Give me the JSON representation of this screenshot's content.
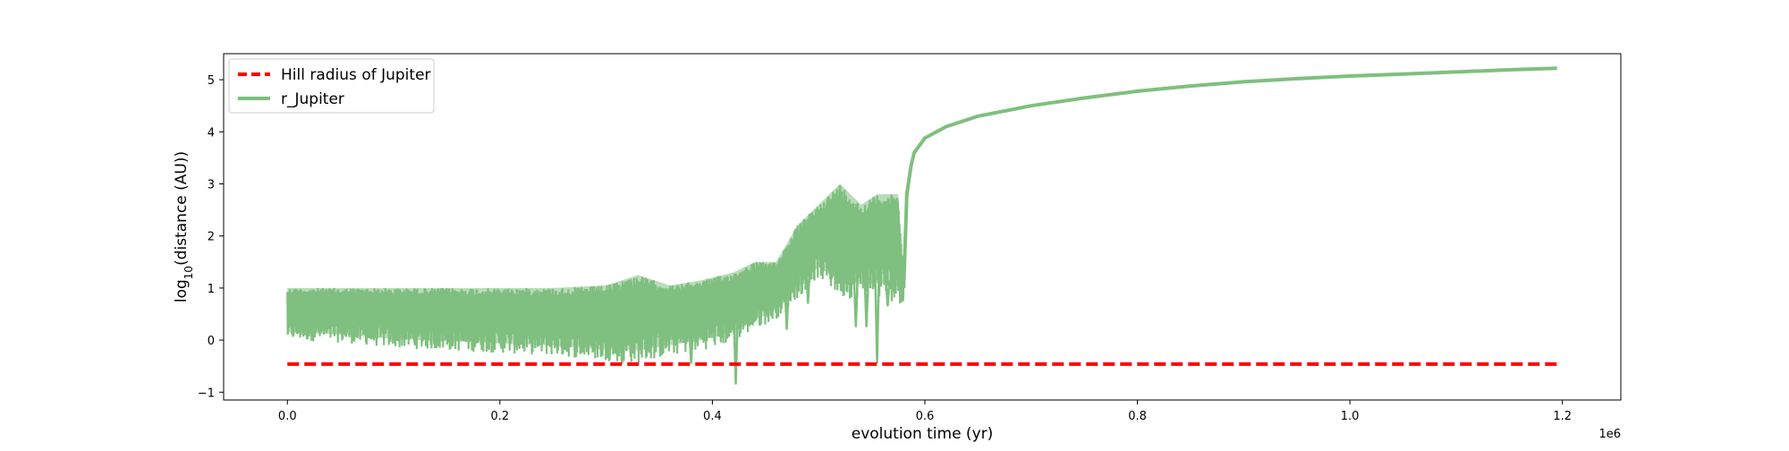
{
  "chart_data": {
    "type": "line",
    "xlabel": "evolution time (yr)",
    "ylabel_main": "log",
    "ylabel_sub": "10",
    "ylabel_rest": "(distance (AU))",
    "x_offset_label": "1e6",
    "xlim": [
      -0.06,
      1.255
    ],
    "ylim": [
      -1.15,
      5.5
    ],
    "x_ticks": [
      0.0,
      0.2,
      0.4,
      0.6,
      0.8,
      1.0,
      1.2
    ],
    "x_tick_labels": [
      "0.0",
      "0.2",
      "0.4",
      "0.6",
      "0.8",
      "1.0",
      "1.2"
    ],
    "y_ticks": [
      -1,
      0,
      1,
      2,
      3,
      4,
      5
    ],
    "y_tick_labels": [
      "−1",
      "0",
      "1",
      "2",
      "3",
      "4",
      "5"
    ],
    "grid": false,
    "legend_position": "upper-left",
    "series": [
      {
        "name": "Hill radius of Jupiter",
        "style": "dashed",
        "color": "#ff0000",
        "x": [
          0.0,
          1.195
        ],
        "y": [
          -0.46,
          -0.46
        ]
      },
      {
        "name": "r_Jupiter",
        "style": "solid",
        "color": "#7fbf7f",
        "envelope": {
          "x": [
            0.0,
            0.05,
            0.1,
            0.15,
            0.2,
            0.25,
            0.3,
            0.33,
            0.36,
            0.39,
            0.42,
            0.44,
            0.46,
            0.48,
            0.5,
            0.52,
            0.54,
            0.555,
            0.575,
            0.58
          ],
          "upper": [
            1.0,
            1.0,
            1.0,
            1.0,
            1.0,
            1.0,
            1.05,
            1.25,
            1.05,
            1.15,
            1.3,
            1.5,
            1.5,
            2.2,
            2.6,
            3.0,
            2.6,
            2.8,
            2.8,
            1.2
          ],
          "lower": [
            0.0,
            -0.05,
            -0.15,
            -0.2,
            -0.25,
            -0.3,
            -0.4,
            -0.45,
            -0.3,
            -0.2,
            -0.05,
            0.2,
            0.4,
            0.8,
            1.2,
            0.8,
            0.8,
            0.8,
            0.7,
            0.7
          ]
        },
        "curve": {
          "x": [
            0.58,
            0.583,
            0.587,
            0.59,
            0.6,
            0.62,
            0.65,
            0.7,
            0.75,
            0.8,
            0.85,
            0.9,
            0.95,
            1.0,
            1.05,
            1.1,
            1.15,
            1.195
          ],
          "y": [
            1.0,
            2.8,
            3.35,
            3.6,
            3.88,
            4.1,
            4.3,
            4.5,
            4.65,
            4.78,
            4.88,
            4.96,
            5.02,
            5.07,
            5.11,
            5.15,
            5.19,
            5.22
          ]
        },
        "dips": [
          {
            "x": 0.315,
            "y": -0.45
          },
          {
            "x": 0.38,
            "y": -0.45
          },
          {
            "x": 0.422,
            "y": -0.85
          },
          {
            "x": 0.47,
            "y": 0.2
          },
          {
            "x": 0.49,
            "y": 0.7
          },
          {
            "x": 0.535,
            "y": 0.25
          },
          {
            "x": 0.545,
            "y": 0.25
          },
          {
            "x": 0.555,
            "y": -0.45
          },
          {
            "x": 0.565,
            "y": 0.65
          }
        ]
      }
    ]
  }
}
